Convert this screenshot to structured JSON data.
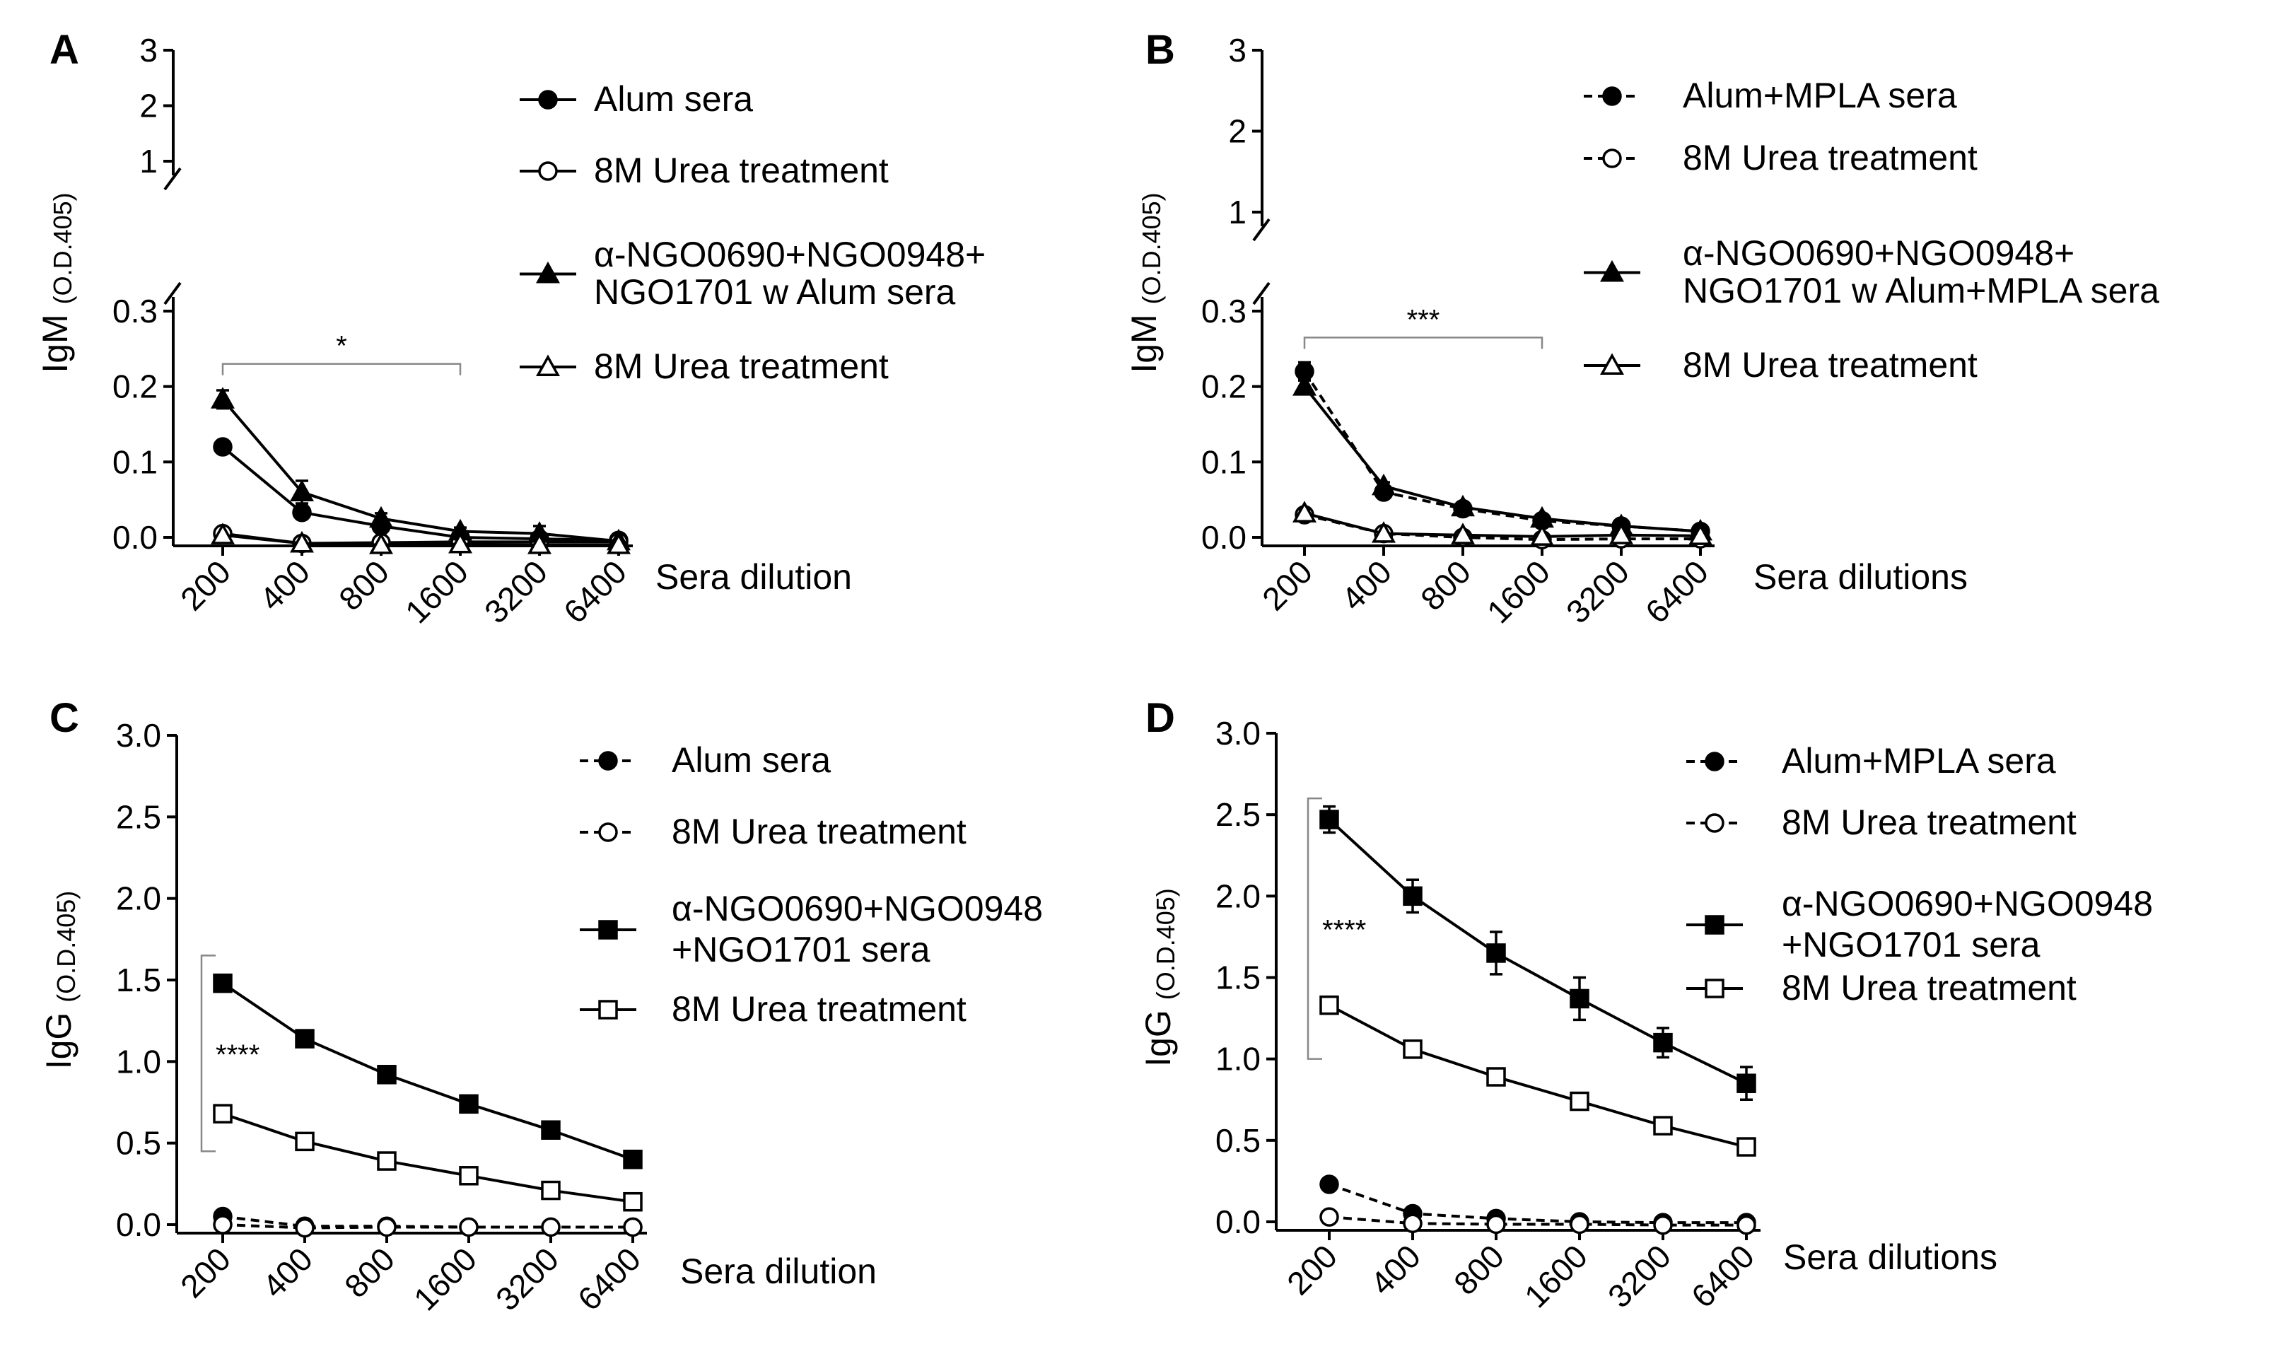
{
  "chart_data": [
    {
      "panel_label": "A",
      "type": "line",
      "ylabel_main": "IgM",
      "ylabel_sub": "(O.D.405)",
      "xlabel": "Sera dilution",
      "categories": [
        "200",
        "400",
        "800",
        "1600",
        "3200",
        "6400"
      ],
      "y_ticks_lower": [
        "0.0",
        "0.1",
        "0.2",
        "0.3"
      ],
      "y_ticks_upper": [
        "1",
        "2",
        "3"
      ],
      "ylim_lower": [
        0,
        0.3
      ],
      "ylim_upper": [
        1,
        3
      ],
      "series": [
        {
          "name": "Alum sera",
          "marker": "circle-filled",
          "dashed": false,
          "values": [
            0.12,
            0.033,
            0.015,
            0.0,
            -0.002,
            -0.004
          ],
          "errors": [
            0.005,
            0.004,
            0.004,
            0.003,
            0.004,
            0.002
          ]
        },
        {
          "name": "8M Urea treatment",
          "marker": "circle-open",
          "dashed": false,
          "values": [
            0.005,
            -0.008,
            -0.007,
            -0.006,
            -0.006,
            -0.006
          ],
          "errors": [
            0.003,
            0.002,
            0.002,
            0.002,
            0.002,
            0.002
          ]
        },
        {
          "name": "α-NGO0690+NGO0948+ NGO1701 w Alum sera",
          "name_lines": [
            "α-NGO0690+NGO0948+",
            "NGO1701 w Alum sera"
          ],
          "marker": "triangle-filled",
          "dashed": false,
          "values": [
            0.183,
            0.06,
            0.025,
            0.008,
            0.005,
            -0.005
          ],
          "errors": [
            0.012,
            0.015,
            0.007,
            0.005,
            0.01,
            0.003
          ]
        },
        {
          "name": "8M Urea treatment",
          "marker": "triangle-open",
          "dashed": false,
          "values": [
            0.003,
            -0.008,
            -0.01,
            -0.009,
            -0.01,
            -0.01
          ],
          "errors": [
            0.003,
            0.002,
            0.002,
            0.002,
            0.002,
            0.002
          ]
        }
      ],
      "significance": {
        "label": "*",
        "from": "200",
        "to": "1600",
        "y": 0.23
      }
    },
    {
      "panel_label": "B",
      "type": "line",
      "ylabel_main": "IgM",
      "ylabel_sub": "(O.D.405)",
      "xlabel": "Sera dilutions",
      "categories": [
        "200",
        "400",
        "800",
        "1600",
        "3200",
        "6400"
      ],
      "y_ticks_lower": [
        "0.0",
        "0.1",
        "0.2",
        "0.3"
      ],
      "y_ticks_upper": [
        "1",
        "2",
        "3"
      ],
      "ylim_lower": [
        0,
        0.3
      ],
      "ylim_upper": [
        1,
        3
      ],
      "series": [
        {
          "name": "Alum+MPLA sera",
          "marker": "circle-filled",
          "dashed": true,
          "values": [
            0.22,
            0.06,
            0.038,
            0.022,
            0.015,
            0.008
          ],
          "errors": [
            0.012,
            0.004,
            0.006,
            0.004,
            0.004,
            0.003
          ]
        },
        {
          "name": "8M Urea treatment",
          "marker": "circle-open",
          "dashed": true,
          "values": [
            0.03,
            0.005,
            0.0,
            -0.003,
            -0.002,
            -0.002
          ],
          "errors": [
            0.005,
            0.002,
            0.002,
            0.002,
            0.002,
            0.002
          ]
        },
        {
          "name": "α-NGO0690+NGO0948+ NGO1701 w Alum+MPLA sera",
          "name_lines": [
            "α-NGO0690+NGO0948+",
            "NGO1701 w Alum+MPLA sera"
          ],
          "marker": "triangle-filled",
          "dashed": false,
          "values": [
            0.2,
            0.068,
            0.04,
            0.025,
            0.015,
            0.008
          ],
          "errors": [
            0.01,
            0.005,
            0.006,
            0.004,
            0.004,
            0.003
          ]
        },
        {
          "name": "8M Urea treatment",
          "marker": "triangle-open",
          "dashed": false,
          "values": [
            0.032,
            0.005,
            0.003,
            0.001,
            0.003,
            0.002
          ],
          "errors": [
            0.005,
            0.002,
            0.002,
            0.002,
            0.002,
            0.002
          ]
        }
      ],
      "significance": {
        "label": "***",
        "from": "200",
        "to": "1600",
        "y": 0.265
      }
    },
    {
      "panel_label": "C",
      "type": "line",
      "ylabel_main": "IgG",
      "ylabel_sub": "(O.D.405)",
      "xlabel": "Sera dilution",
      "categories": [
        "200",
        "400",
        "800",
        "1600",
        "3200",
        "6400"
      ],
      "y_ticks": [
        "0.0",
        "0.5",
        "1.0",
        "1.5",
        "2.0",
        "2.5",
        "3.0"
      ],
      "ylim": [
        0,
        3
      ],
      "series": [
        {
          "name": "Alum sera",
          "marker": "circle-filled",
          "dashed": true,
          "values": [
            0.05,
            -0.01,
            -0.01,
            -0.015,
            -0.015,
            -0.015
          ],
          "errors": [
            0.01,
            0.01,
            0.01,
            0.01,
            0.01,
            0.01
          ]
        },
        {
          "name": "8M Urea treatment",
          "marker": "circle-open",
          "dashed": true,
          "values": [
            0.0,
            -0.02,
            -0.015,
            -0.015,
            -0.015,
            -0.015
          ],
          "errors": [
            0.01,
            0.01,
            0.01,
            0.01,
            0.01,
            0.01
          ]
        },
        {
          "name": "α-NGO0690+NGO0948 +NGO1701 sera",
          "name_lines": [
            "α-NGO0690+NGO0948",
            "+NGO1701 sera"
          ],
          "marker": "square-filled",
          "dashed": false,
          "values": [
            1.48,
            1.14,
            0.92,
            0.74,
            0.58,
            0.4
          ],
          "errors": [
            0.02,
            0.02,
            0.03,
            0.02,
            0.03,
            0.02
          ]
        },
        {
          "name": "8M Urea treatment",
          "marker": "square-open",
          "dashed": false,
          "values": [
            0.68,
            0.51,
            0.39,
            0.3,
            0.21,
            0.14
          ],
          "errors": [
            0.02,
            0.02,
            0.02,
            0.02,
            0.02,
            0.02
          ]
        }
      ],
      "significance": {
        "label": "****",
        "from_value": 0.45,
        "to_value": 1.65
      }
    },
    {
      "panel_label": "D",
      "type": "line",
      "ylabel_main": "IgG",
      "ylabel_sub": "(O.D.405)",
      "xlabel": "Sera dilutions",
      "categories": [
        "200",
        "400",
        "800",
        "1600",
        "3200",
        "6400"
      ],
      "y_ticks": [
        "0.0",
        "0.5",
        "1.0",
        "1.5",
        "2.0",
        "2.5",
        "3.0"
      ],
      "ylim": [
        0,
        3
      ],
      "series": [
        {
          "name": "Alum+MPLA sera",
          "marker": "circle-filled",
          "dashed": true,
          "values": [
            0.23,
            0.05,
            0.02,
            0.0,
            -0.005,
            -0.005
          ],
          "errors": [
            0.01,
            0.01,
            0.01,
            0.01,
            0.01,
            0.01
          ]
        },
        {
          "name": "8M Urea treatment",
          "marker": "circle-open",
          "dashed": true,
          "values": [
            0.03,
            -0.01,
            -0.015,
            -0.015,
            -0.02,
            -0.02
          ],
          "errors": [
            0.01,
            0.01,
            0.01,
            0.01,
            0.01,
            0.01
          ]
        },
        {
          "name": "α-NGO0690+NGO0948 +NGO1701 sera",
          "name_lines": [
            "α-NGO0690+NGO0948",
            "+NGO1701 sera"
          ],
          "marker": "square-filled",
          "dashed": false,
          "values": [
            2.47,
            2.0,
            1.65,
            1.37,
            1.1,
            0.85
          ],
          "errors": [
            0.08,
            0.1,
            0.13,
            0.13,
            0.09,
            0.1
          ]
        },
        {
          "name": "8M Urea treatment",
          "marker": "square-open",
          "dashed": false,
          "values": [
            1.33,
            1.06,
            0.89,
            0.74,
            0.59,
            0.46
          ],
          "errors": [
            0.02,
            0.02,
            0.02,
            0.02,
            0.02,
            0.02
          ]
        }
      ],
      "significance": {
        "label": "****",
        "from_value": 1.0,
        "to_value": 2.6
      }
    }
  ]
}
